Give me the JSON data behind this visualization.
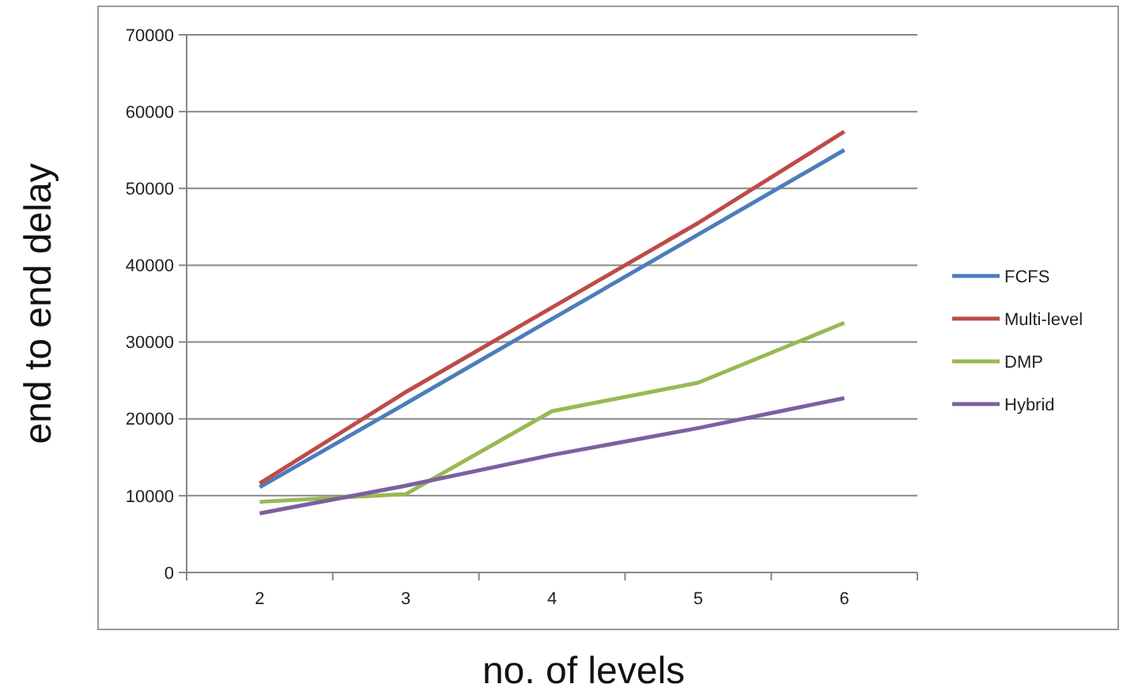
{
  "chart_data": {
    "type": "line",
    "xlabel": "no. of levels",
    "ylabel": "end to end delay",
    "categories": [
      "2",
      "3",
      "4",
      "5",
      "6"
    ],
    "series": [
      {
        "name": "FCFS",
        "color": "#4a7ebb",
        "values": [
          11100,
          22000,
          33000,
          44000,
          55000
        ]
      },
      {
        "name": "Multi-level",
        "color": "#be4b48",
        "values": [
          11600,
          23500,
          34500,
          45500,
          57400
        ]
      },
      {
        "name": "DMP",
        "color": "#98b954",
        "values": [
          9200,
          10200,
          21000,
          24700,
          32500
        ]
      },
      {
        "name": "Hybrid",
        "color": "#7d60a0",
        "values": [
          7700,
          11300,
          15300,
          18800,
          22700
        ]
      }
    ],
    "ylim": [
      0,
      70000
    ],
    "yticks": [
      0,
      10000,
      20000,
      30000,
      40000,
      50000,
      60000,
      70000
    ],
    "grid": "y",
    "legend": "right",
    "marker": "none",
    "line_style": "solid"
  }
}
